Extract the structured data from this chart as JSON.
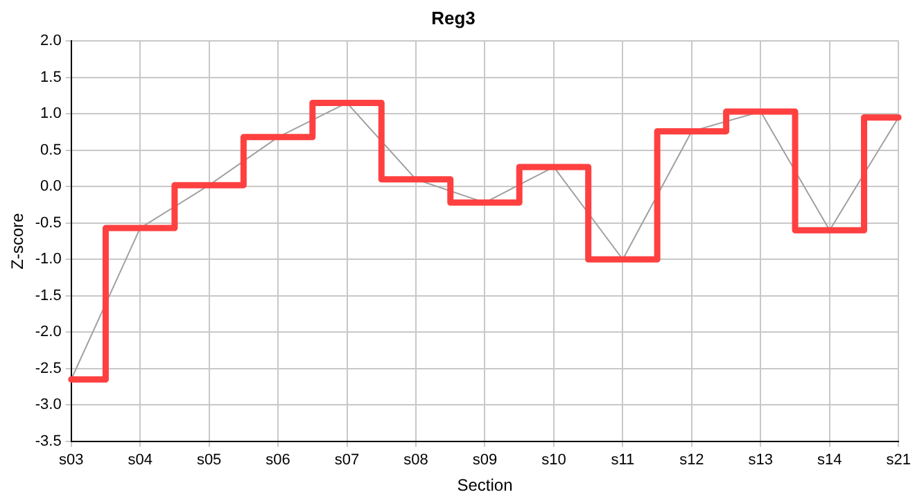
{
  "chart_data": {
    "type": "line",
    "title": "Reg3",
    "xlabel": "Section",
    "ylabel": "Z-score",
    "categories": [
      "s03",
      "s04",
      "s05",
      "s06",
      "s07",
      "s08",
      "s09",
      "s10",
      "s11",
      "s12",
      "s13",
      "s14",
      "s21"
    ],
    "series": [
      {
        "type": "step",
        "color": "#ff4040",
        "values": [
          -2.65,
          -0.57,
          0.02,
          0.68,
          1.15,
          0.1,
          -0.22,
          0.27,
          -1.0,
          0.76,
          1.03,
          -0.6,
          0.95
        ]
      },
      {
        "type": "line",
        "color": "#a0a0a0",
        "values": [
          -2.65,
          -0.57,
          0.02,
          0.68,
          1.15,
          0.1,
          -0.22,
          0.27,
          -1.0,
          0.76,
          1.03,
          -0.6,
          0.95
        ]
      }
    ],
    "ylim": [
      -3.5,
      2.0
    ],
    "yticks": [
      {
        "value": -3.5,
        "label": "-3.5"
      },
      {
        "value": -3,
        "label": "-3.0"
      },
      {
        "value": -2.5,
        "label": "-2.5"
      },
      {
        "value": -2,
        "label": "-2.0"
      },
      {
        "value": -1.5,
        "label": "-1.5"
      },
      {
        "value": -1,
        "label": "-1.0"
      },
      {
        "value": -0.5,
        "label": "-0.5"
      },
      {
        "value": 0,
        "label": "0.0"
      },
      {
        "value": 0.5,
        "label": "0.5"
      },
      {
        "value": 1,
        "label": "1.0"
      },
      {
        "value": 1.5,
        "label": "1.5"
      },
      {
        "value": 2,
        "label": "2.0"
      }
    ],
    "grid": true,
    "legend": false,
    "marker": "none",
    "line_style": "solid"
  }
}
